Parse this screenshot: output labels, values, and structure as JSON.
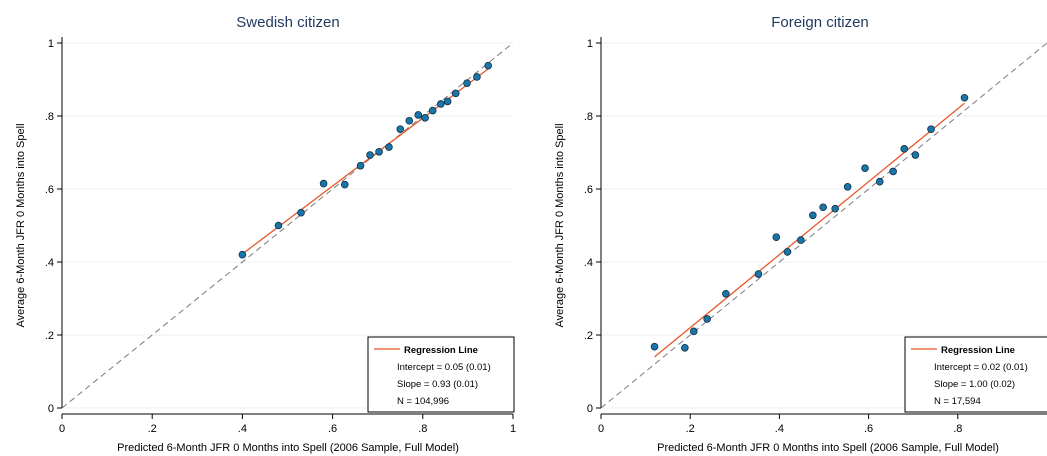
{
  "chart_data": [
    {
      "type": "scatter",
      "title": "Swedish citizen",
      "xlabel": "Predicted 6-Month JFR 0 Months into Spell (2006 Sample, Full Model)",
      "ylabel": "Average 6-Month JFR 0 Months into Spell",
      "xlim": [
        0,
        1
      ],
      "ylim": [
        0,
        1
      ],
      "x_ticks": [
        "0",
        ".2",
        ".4",
        ".6",
        ".8",
        "1"
      ],
      "y_ticks": [
        "0",
        ".2",
        ".4",
        ".6",
        ".8",
        "1"
      ],
      "grid": true,
      "legend_position": "bottom-right",
      "points": [
        {
          "x": 0.4,
          "y": 0.42
        },
        {
          "x": 0.48,
          "y": 0.5
        },
        {
          "x": 0.53,
          "y": 0.535
        },
        {
          "x": 0.58,
          "y": 0.615
        },
        {
          "x": 0.627,
          "y": 0.612
        },
        {
          "x": 0.662,
          "y": 0.664
        },
        {
          "x": 0.683,
          "y": 0.693
        },
        {
          "x": 0.703,
          "y": 0.702
        },
        {
          "x": 0.725,
          "y": 0.715
        },
        {
          "x": 0.75,
          "y": 0.764
        },
        {
          "x": 0.77,
          "y": 0.787
        },
        {
          "x": 0.79,
          "y": 0.803
        },
        {
          "x": 0.805,
          "y": 0.795
        },
        {
          "x": 0.822,
          "y": 0.815
        },
        {
          "x": 0.84,
          "y": 0.833
        },
        {
          "x": 0.855,
          "y": 0.84
        },
        {
          "x": 0.873,
          "y": 0.862
        },
        {
          "x": 0.898,
          "y": 0.89
        },
        {
          "x": 0.92,
          "y": 0.907
        },
        {
          "x": 0.945,
          "y": 0.938
        }
      ],
      "regression": {
        "x": [
          0.4,
          0.945
        ],
        "y": [
          0.422,
          0.929
        ]
      },
      "legend": {
        "entry": "Regression Line",
        "intercept": "Intercept = 0.05 (0.01)",
        "slope": "Slope = 0.93 (0.01)",
        "n": "N =   104,996"
      }
    },
    {
      "type": "scatter",
      "title": "Foreign citizen",
      "xlabel": "Predicted 6-Month JFR 0 Months into Spell (2006 Sample, Full Model)",
      "ylabel": "Average 6-Month JFR 0 Months into Spell",
      "xlim": [
        0,
        1
      ],
      "ylim": [
        0,
        1
      ],
      "x_ticks": [
        "0",
        ".2",
        ".4",
        ".6",
        ".8"
      ],
      "y_ticks": [
        "0",
        ".2",
        ".4",
        ".6",
        ".8",
        "1"
      ],
      "grid": true,
      "legend_position": "bottom-right",
      "points": [
        {
          "x": 0.12,
          "y": 0.168
        },
        {
          "x": 0.188,
          "y": 0.165
        },
        {
          "x": 0.208,
          "y": 0.21
        },
        {
          "x": 0.238,
          "y": 0.244
        },
        {
          "x": 0.28,
          "y": 0.313
        },
        {
          "x": 0.353,
          "y": 0.367
        },
        {
          "x": 0.393,
          "y": 0.468
        },
        {
          "x": 0.418,
          "y": 0.428
        },
        {
          "x": 0.448,
          "y": 0.46
        },
        {
          "x": 0.475,
          "y": 0.528
        },
        {
          "x": 0.498,
          "y": 0.55
        },
        {
          "x": 0.525,
          "y": 0.546
        },
        {
          "x": 0.553,
          "y": 0.606
        },
        {
          "x": 0.592,
          "y": 0.657
        },
        {
          "x": 0.625,
          "y": 0.62
        },
        {
          "x": 0.655,
          "y": 0.648
        },
        {
          "x": 0.68,
          "y": 0.71
        },
        {
          "x": 0.705,
          "y": 0.693
        },
        {
          "x": 0.74,
          "y": 0.764
        },
        {
          "x": 0.815,
          "y": 0.85
        }
      ],
      "regression": {
        "x": [
          0.12,
          0.815
        ],
        "y": [
          0.14,
          0.835
        ]
      },
      "legend": {
        "entry": "Regression Line",
        "intercept": "Intercept = 0.02 (0.01)",
        "slope": "Slope = 1.00 (0.02)",
        "n": "N =    17,594"
      }
    }
  ],
  "colors": {
    "background": "#ffffff",
    "grid": "#eaf2f3",
    "axis": "#000000",
    "marker_fill": "#1a76a8",
    "marker_stroke": "#0d2e44",
    "regression": "#e8562a",
    "diagonal": "#7a7a7a",
    "text": "#000000",
    "title": "#1f3a5f"
  }
}
